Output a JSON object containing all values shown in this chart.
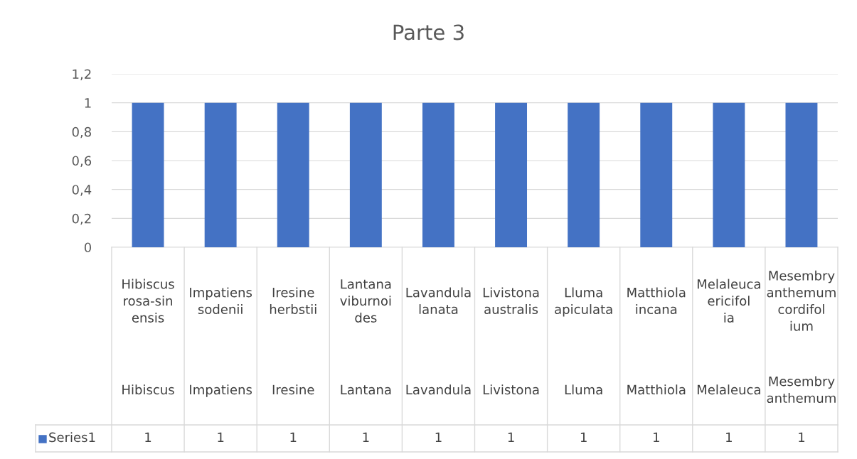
{
  "chart_data": {
    "type": "bar",
    "title": "Parte 3",
    "categories": [
      "Hibiscus rosa-sinensis",
      "Impatiens sodenii",
      "Iresine herbstii",
      "Lantana viburnoides",
      "Lavandula lanata",
      "Livistona australis",
      "Lluma apiculata",
      "Matthiola incana",
      "Melaleuca ericifolia",
      "Mesembryanthemum cordifolium"
    ],
    "annotations": [
      "Hibiscus",
      "Impatiens",
      "Iresine",
      "Lantana",
      "Lavandula",
      "Livistona",
      "Lluma",
      "Matthiola",
      "Melaleuca",
      "Mesembryanthemum"
    ],
    "series": [
      {
        "name": "Series1",
        "color": "#4472c4",
        "values": [
          1,
          1,
          1,
          1,
          1,
          1,
          1,
          1,
          1,
          1
        ]
      }
    ],
    "ylim": [
      0,
      1.2
    ],
    "yticks": [
      0,
      {
        "value": 0.2,
        "label": "0,2"
      },
      {
        "value": 0.4,
        "label": "0,4"
      },
      {
        "value": 0.6,
        "label": "0,6"
      },
      {
        "value": 0.8,
        "label": "0,8"
      },
      1,
      {
        "value": 1.2,
        "label": "1,2"
      }
    ],
    "grid": "y",
    "data_labels": true,
    "legend": "bottom left"
  }
}
